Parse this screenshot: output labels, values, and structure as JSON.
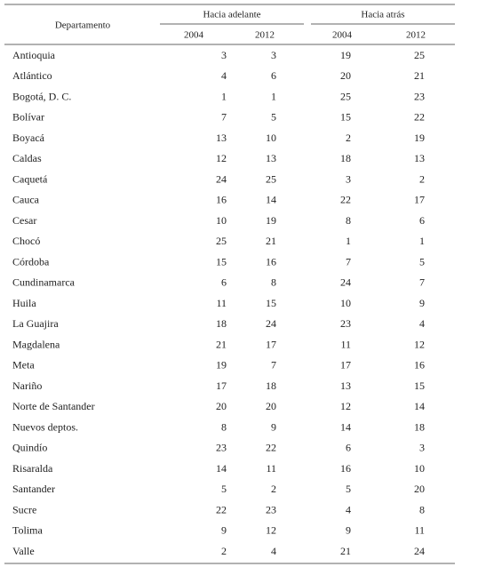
{
  "table": {
    "header": {
      "first": "Departamento",
      "groups": [
        "Hacia adelante",
        "Hacia atrás"
      ],
      "years": [
        "2004",
        "2012",
        "2004",
        "2012"
      ]
    },
    "rows": [
      [
        "Antioquia",
        3,
        3,
        19,
        25
      ],
      [
        "Atlántico",
        4,
        6,
        20,
        21
      ],
      [
        "Bogotá, D. C.",
        1,
        1,
        25,
        23
      ],
      [
        "Bolívar",
        7,
        5,
        15,
        22
      ],
      [
        "Boyacá",
        13,
        10,
        2,
        19
      ],
      [
        "Caldas",
        12,
        13,
        18,
        13
      ],
      [
        "Caquetá",
        24,
        25,
        3,
        2
      ],
      [
        "Cauca",
        16,
        14,
        22,
        17
      ],
      [
        "Cesar",
        10,
        19,
        8,
        6
      ],
      [
        "Chocó",
        25,
        21,
        1,
        1
      ],
      [
        "Córdoba",
        15,
        16,
        7,
        5
      ],
      [
        "Cundinamarca",
        6,
        8,
        24,
        7
      ],
      [
        "Huila",
        11,
        15,
        10,
        9
      ],
      [
        "La Guajira",
        18,
        24,
        23,
        4
      ],
      [
        "Magdalena",
        21,
        17,
        11,
        12
      ],
      [
        "Meta",
        19,
        7,
        17,
        16
      ],
      [
        "Nariño",
        17,
        18,
        13,
        15
      ],
      [
        "Norte de Santander",
        20,
        20,
        12,
        14
      ],
      [
        "Nuevos deptos.",
        8,
        9,
        14,
        18
      ],
      [
        "Quindío",
        23,
        22,
        6,
        3
      ],
      [
        "Risaralda",
        14,
        11,
        16,
        10
      ],
      [
        "Santander",
        5,
        2,
        5,
        20
      ],
      [
        "Sucre",
        22,
        23,
        4,
        8
      ],
      [
        "Tolima",
        9,
        12,
        9,
        11
      ],
      [
        "Valle",
        2,
        4,
        21,
        24
      ]
    ]
  }
}
